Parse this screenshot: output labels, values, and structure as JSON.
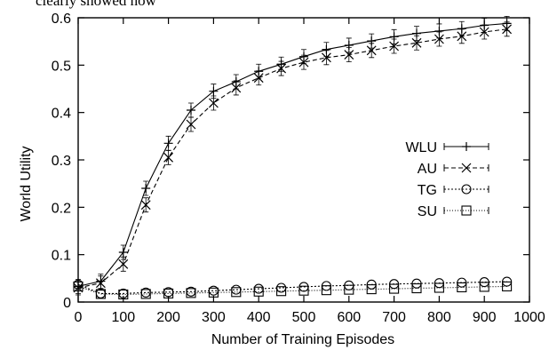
{
  "top_text": "clearly showed how",
  "chart_data": {
    "type": "line",
    "xlabel": "Number of Training Episodes",
    "ylabel": "World Utility",
    "xlim": [
      0,
      1000
    ],
    "ylim": [
      0,
      0.6
    ],
    "xticks": [
      "0",
      "100",
      "200",
      "300",
      "400",
      "500",
      "600",
      "700",
      "800",
      "900",
      "1000"
    ],
    "yticks": [
      "0",
      "0.1",
      "0.2",
      "0.3",
      "0.4",
      "0.5",
      "0.6"
    ],
    "legend_position": "right",
    "grid": false,
    "x": [
      0,
      50,
      100,
      150,
      200,
      250,
      300,
      350,
      400,
      450,
      500,
      550,
      600,
      650,
      700,
      750,
      800,
      850,
      900,
      950
    ],
    "series": [
      {
        "name": "WLU",
        "marker": "plus",
        "dash": "solid",
        "values": [
          0.033,
          0.044,
          0.105,
          0.24,
          0.335,
          0.405,
          0.445,
          0.465,
          0.487,
          0.502,
          0.518,
          0.533,
          0.542,
          0.551,
          0.56,
          0.567,
          0.572,
          0.577,
          0.584,
          0.588
        ]
      },
      {
        "name": "AU",
        "marker": "x",
        "dash": "dashed",
        "values": [
          0.03,
          0.04,
          0.08,
          0.205,
          0.305,
          0.375,
          0.42,
          0.452,
          0.473,
          0.493,
          0.506,
          0.516,
          0.522,
          0.531,
          0.54,
          0.547,
          0.555,
          0.561,
          0.57,
          0.576
        ]
      },
      {
        "name": "TG",
        "marker": "circle",
        "dash": "dotted",
        "values": [
          0.037,
          0.018,
          0.018,
          0.02,
          0.021,
          0.022,
          0.024,
          0.026,
          0.028,
          0.03,
          0.032,
          0.034,
          0.035,
          0.037,
          0.038,
          0.039,
          0.04,
          0.041,
          0.042,
          0.043
        ]
      },
      {
        "name": "SU",
        "marker": "square",
        "dash": "finedotted",
        "values": [
          0.033,
          0.017,
          0.016,
          0.017,
          0.018,
          0.019,
          0.02,
          0.021,
          0.022,
          0.023,
          0.024,
          0.025,
          0.026,
          0.027,
          0.028,
          0.029,
          0.03,
          0.031,
          0.032,
          0.033
        ]
      }
    ]
  }
}
